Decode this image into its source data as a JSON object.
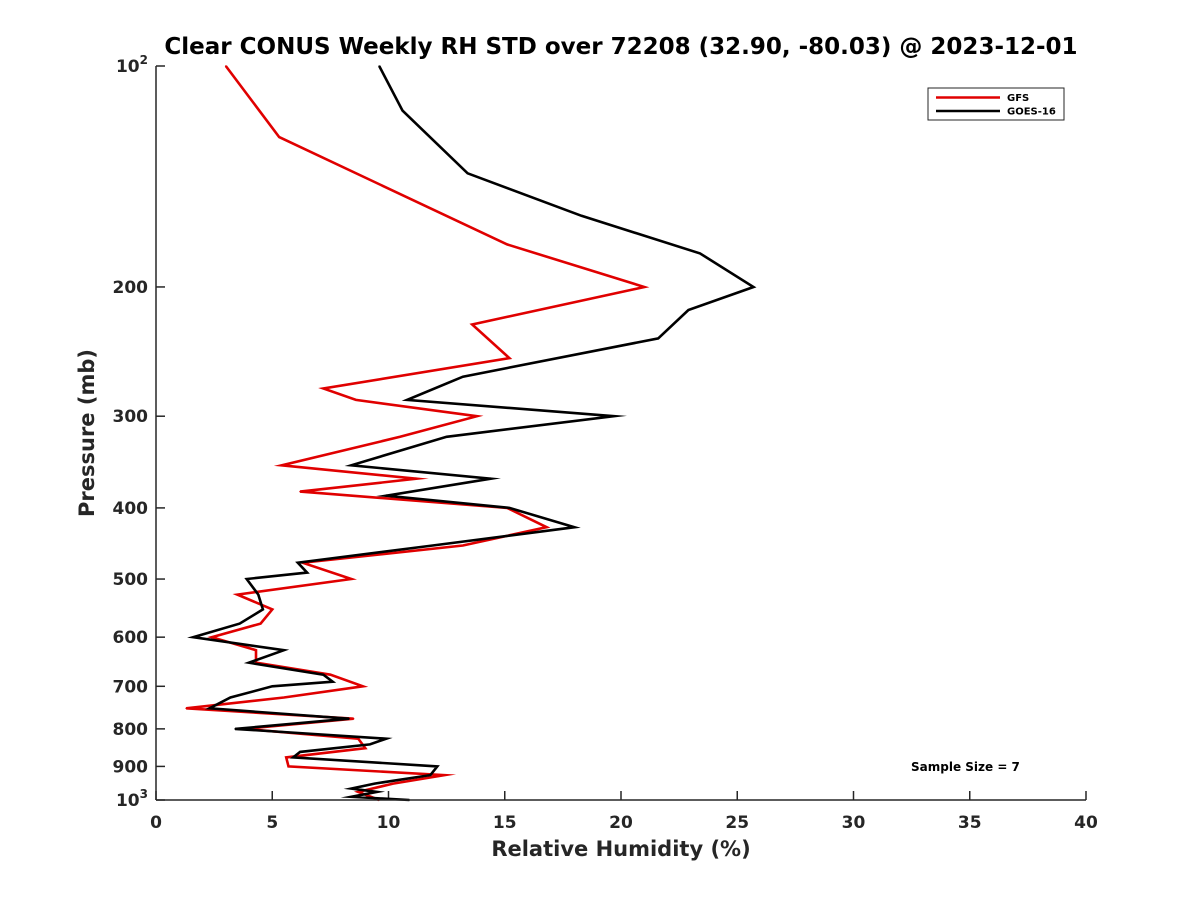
{
  "chart_data": {
    "type": "line",
    "title": "Clear CONUS Weekly RH STD over 72208 (32.90, -80.03) @ 2023-12-01",
    "xlabel": "Relative Humidity (%)",
    "ylabel": "Pressure (mb)",
    "xlim": [
      0,
      40
    ],
    "ylim": [
      100,
      1000
    ],
    "y_scale": "log",
    "y_reversed": true,
    "grid": false,
    "legend_position": "top-right",
    "x_ticks": [
      "0",
      "5",
      "10",
      "15",
      "20",
      "25",
      "30",
      "35",
      "40"
    ],
    "x_tick_values": [
      0,
      5,
      10,
      15,
      20,
      25,
      30,
      35,
      40
    ],
    "y_ticks": [
      {
        "value": 100,
        "base": "10",
        "exp": "2"
      },
      {
        "value": 200,
        "label": "200"
      },
      {
        "value": 300,
        "label": "300"
      },
      {
        "value": 400,
        "label": "400"
      },
      {
        "value": 500,
        "label": "500"
      },
      {
        "value": 600,
        "label": "600"
      },
      {
        "value": 700,
        "label": "700"
      },
      {
        "value": 800,
        "label": "800"
      },
      {
        "value": 900,
        "label": "900"
      },
      {
        "value": 1000,
        "base": "10",
        "exp": "3"
      }
    ],
    "annotation": "Sample Size = 7",
    "series": [
      {
        "name": "GFS",
        "color": "#e00000",
        "points": [
          [
            3.0,
            100
          ],
          [
            5.3,
            125
          ],
          [
            15.1,
            175
          ],
          [
            21.0,
            200
          ],
          [
            13.6,
            225
          ],
          [
            15.2,
            250
          ],
          [
            7.2,
            275
          ],
          [
            8.6,
            285
          ],
          [
            13.8,
            300
          ],
          [
            10.5,
            320
          ],
          [
            5.4,
            350
          ],
          [
            11.2,
            365
          ],
          [
            6.2,
            380
          ],
          [
            15.1,
            400
          ],
          [
            16.8,
            425
          ],
          [
            13.2,
            450
          ],
          [
            6.3,
            475
          ],
          [
            8.4,
            500
          ],
          [
            3.5,
            525
          ],
          [
            5.0,
            550
          ],
          [
            4.5,
            575
          ],
          [
            2.4,
            600
          ],
          [
            4.3,
            625
          ],
          [
            4.3,
            650
          ],
          [
            7.5,
            675
          ],
          [
            8.9,
            700
          ],
          [
            5.5,
            725
          ],
          [
            1.3,
            750
          ],
          [
            8.5,
            775
          ],
          [
            3.8,
            800
          ],
          [
            8.7,
            825
          ],
          [
            9.0,
            850
          ],
          [
            5.6,
            875
          ],
          [
            5.7,
            900
          ],
          [
            12.4,
            925
          ],
          [
            10.2,
            950
          ],
          [
            8.7,
            975
          ],
          [
            9.6,
            1000
          ]
        ]
      },
      {
        "name": "GOES-16",
        "color": "#000000",
        "points": [
          [
            9.6,
            100
          ],
          [
            10.6,
            115
          ],
          [
            13.4,
            140
          ],
          [
            18.3,
            160
          ],
          [
            23.4,
            180
          ],
          [
            25.7,
            200
          ],
          [
            22.9,
            215
          ],
          [
            21.6,
            235
          ],
          [
            13.2,
            265
          ],
          [
            10.8,
            285
          ],
          [
            19.7,
            300
          ],
          [
            12.5,
            320
          ],
          [
            8.4,
            350
          ],
          [
            14.4,
            365
          ],
          [
            9.9,
            385
          ],
          [
            15.2,
            400
          ],
          [
            18.0,
            425
          ],
          [
            11.9,
            450
          ],
          [
            6.1,
            475
          ],
          [
            6.5,
            490
          ],
          [
            3.9,
            500
          ],
          [
            4.4,
            525
          ],
          [
            4.6,
            550
          ],
          [
            3.6,
            575
          ],
          [
            1.6,
            600
          ],
          [
            5.5,
            625
          ],
          [
            4.0,
            650
          ],
          [
            7.2,
            675
          ],
          [
            7.6,
            690
          ],
          [
            5.0,
            700
          ],
          [
            3.2,
            725
          ],
          [
            2.3,
            750
          ],
          [
            8.3,
            775
          ],
          [
            3.4,
            800
          ],
          [
            9.9,
            825
          ],
          [
            9.2,
            840
          ],
          [
            6.2,
            860
          ],
          [
            5.9,
            875
          ],
          [
            12.1,
            900
          ],
          [
            11.8,
            925
          ],
          [
            9.4,
            950
          ],
          [
            8.4,
            965
          ],
          [
            9.5,
            975
          ],
          [
            8.4,
            990
          ],
          [
            10.9,
            1000
          ]
        ]
      }
    ]
  }
}
